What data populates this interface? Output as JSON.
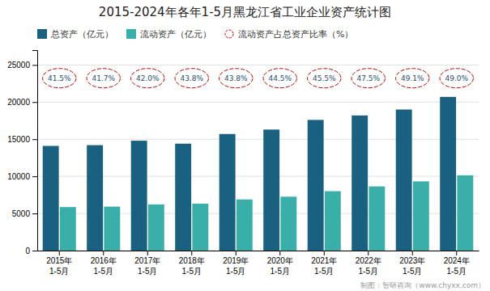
{
  "chart_data": {
    "type": "bar",
    "title": "2015-2024年各年1-5月黑龙江省工业企业资产统计图",
    "categories": [
      "2015年\n1-5月",
      "2016年\n1-5月",
      "2017年\n1-5月",
      "2018年\n1-5月",
      "2019年\n1-5月",
      "2020年\n1-5月",
      "2021年\n1-5月",
      "2022年\n1-5月",
      "2023年\n1-5月",
      "2024年\n1-5月"
    ],
    "series": [
      {
        "name": "总资产（亿元）",
        "type": "bar",
        "color": "#1a6080",
        "values": [
          14100,
          14200,
          14800,
          14400,
          15700,
          16300,
          17600,
          18200,
          19000,
          20700
        ]
      },
      {
        "name": "流动资产（亿元）",
        "type": "bar",
        "color": "#3aafa9",
        "values": [
          5860,
          5920,
          6220,
          6320,
          6890,
          7260,
          8000,
          8640,
          9320,
          10140
        ]
      },
      {
        "name": "流动资产占总资产比率（%）",
        "type": "annotation",
        "marker": "circle",
        "line_style": "dashed",
        "color": "#cc0000",
        "values": [
          41.5,
          41.7,
          42.0,
          43.8,
          43.8,
          44.5,
          45.5,
          47.5,
          49.1,
          49.0
        ],
        "value_labels": [
          "41.5%",
          "41.7%",
          "42.0%",
          "43.8%",
          "43.8%",
          "44.5%",
          "45.5%",
          "47.5%",
          "49.1%",
          "49.0%"
        ]
      }
    ],
    "ylim": [
      0,
      27000
    ],
    "yticks": [
      0,
      5000,
      10000,
      15000,
      20000,
      25000
    ],
    "grid": true,
    "legend": "upper-left",
    "annotations": [
      "制图：智研咨询（www.chyxx.com）"
    ]
  }
}
